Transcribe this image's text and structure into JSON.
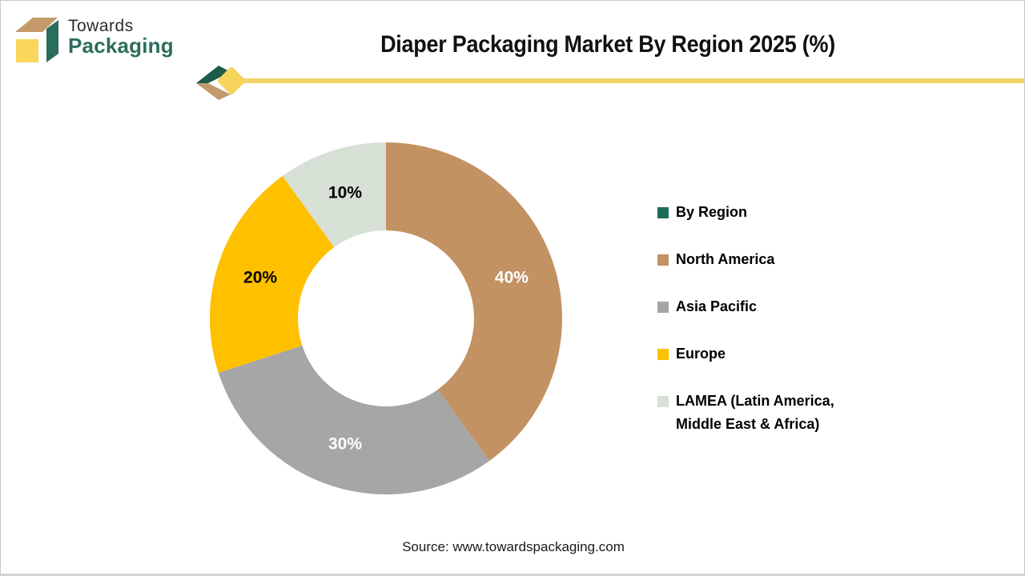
{
  "brand": {
    "name_line1": "Towards",
    "name_line2": "Packaging",
    "colors": {
      "box_top_tan": "#C49A6B",
      "box_front_yellow": "#F8D75C",
      "box_side_green": "#2A6D5C",
      "text_dark": "#2B2B2B",
      "text_green": "#2A6D5C"
    }
  },
  "header": {
    "title": "Diaper Packaging Market By Region 2025 (%)",
    "accent_line_color": "#F2D368",
    "ornament_colors": {
      "green": "#1D5C4C",
      "tan": "#C49A6C",
      "yellow": "#F7D55C"
    }
  },
  "chart_data": {
    "type": "pie",
    "variant": "donut",
    "title": "Diaper Packaging Market By Region 2025 (%)",
    "categories": [
      "North America",
      "Asia Pacific",
      "Europe",
      "LAMEA (Latin America, Middle East & Africa)"
    ],
    "values": [
      40,
      30,
      20,
      10
    ],
    "slice_labels": [
      "40%",
      "30%",
      "20%",
      "10%"
    ],
    "colors": [
      "#C29263",
      "#A6A6A6",
      "#FFC000",
      "#D6E0D5"
    ],
    "slice_label_colors": [
      "#FFFFFF",
      "#FFFFFF",
      "#000000",
      "#000000"
    ],
    "start_angle_deg": 0,
    "direction": "clockwise",
    "inner_radius_ratio": 0.5,
    "label_radius_ratio": 0.75,
    "legend_position": "right",
    "legend": [
      {
        "label": "By Region",
        "color": "#1F6B5C"
      },
      {
        "label": "North America",
        "color": "#C29263"
      },
      {
        "label": "Asia Pacific",
        "color": "#A6A6A6"
      },
      {
        "label": "Europe",
        "color": "#FFC000"
      },
      {
        "label": "LAMEA (Latin America, Middle East & Africa)",
        "color": "#D6E0D5"
      }
    ]
  },
  "footer": {
    "source": "Source: www.towardspackaging.com"
  }
}
